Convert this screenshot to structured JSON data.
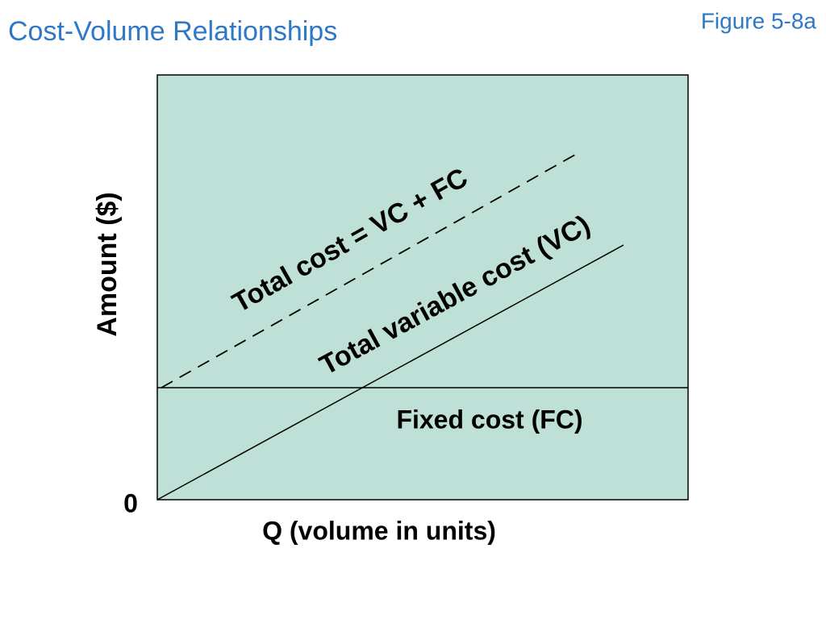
{
  "header": {
    "title": "Cost-Volume Relationships",
    "figure": "Figure 5-8a"
  },
  "diagram": {
    "y_axis_label": "Amount ($)",
    "x_axis_label": "Q (volume in units)",
    "origin_label": "0",
    "lines": [
      {
        "label": "Total cost = VC + FC"
      },
      {
        "label": "Total variable cost (VC)"
      },
      {
        "label": "Fixed cost (FC)"
      }
    ]
  }
}
